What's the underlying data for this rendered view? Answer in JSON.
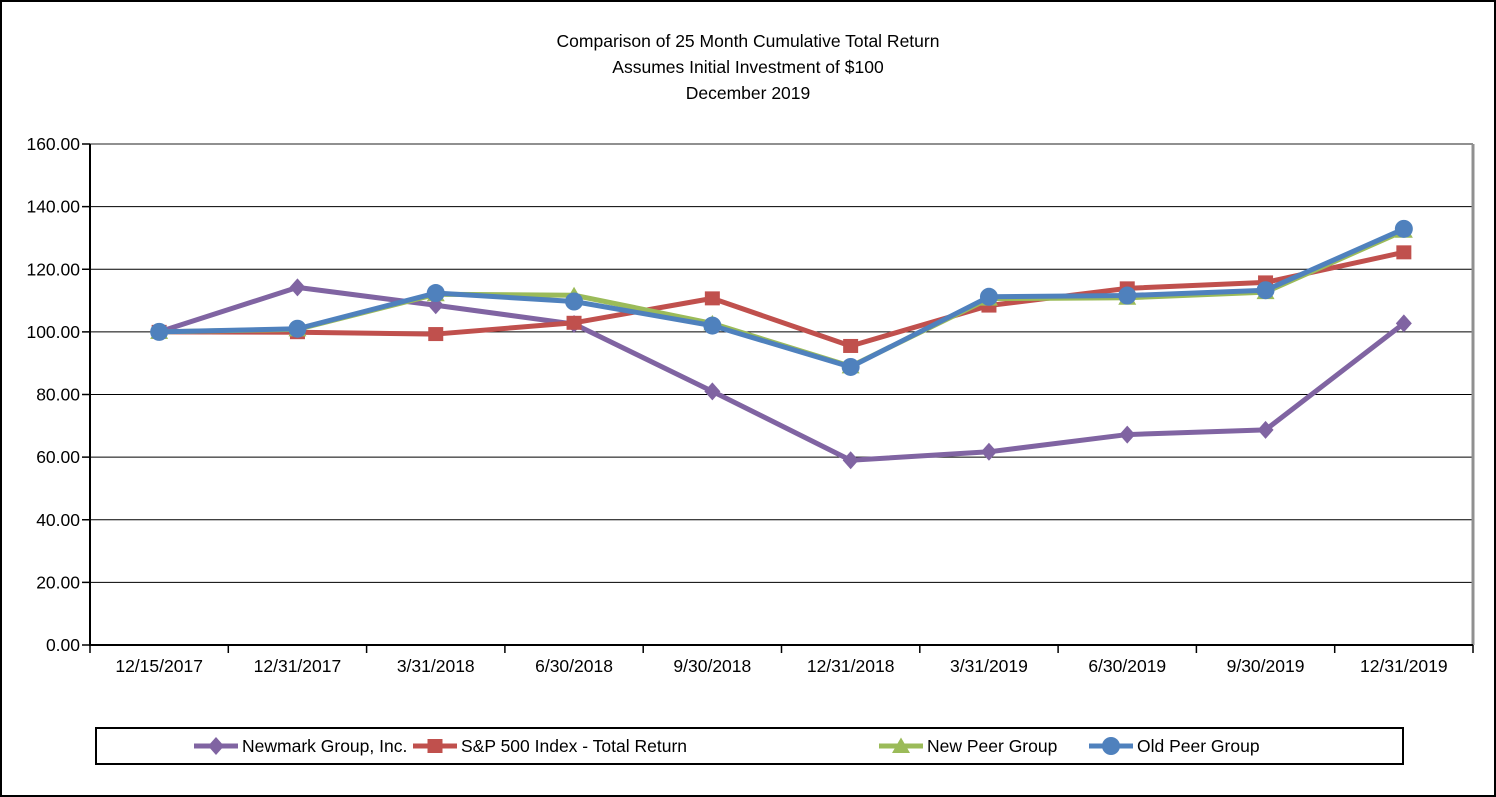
{
  "title": {
    "line1": "Comparison of 25 Month Cumulative Total Return",
    "line2": "Assumes Initial Investment of $100",
    "line3": "December 2019"
  },
  "chart_data": {
    "type": "line",
    "title": "Comparison of 25 Month Cumulative Total Return — Assumes Initial Investment of $100 — December 2019",
    "categories": [
      "12/15/2017",
      "12/31/2017",
      "3/31/2018",
      "6/30/2018",
      "9/30/2018",
      "12/31/2018",
      "3/31/2019",
      "6/30/2019",
      "9/30/2019",
      "12/31/2019"
    ],
    "series": [
      {
        "name": "Newmark Group, Inc.",
        "marker": "diamond",
        "color": "#8064A2",
        "values": [
          100.0,
          114.2,
          108.5,
          102.5,
          81.0,
          59.0,
          61.7,
          67.2,
          68.7,
          102.7
        ]
      },
      {
        "name": "S&P 500 Index - Total Return",
        "marker": "square",
        "color": "#C0504D",
        "values": [
          100.0,
          99.9,
          99.3,
          102.9,
          110.7,
          95.5,
          108.4,
          113.9,
          115.8,
          125.4
        ]
      },
      {
        "name": "New Peer Group",
        "marker": "triangle",
        "color": "#9BBB59",
        "values": [
          100.0,
          100.8,
          112.0,
          111.7,
          102.7,
          89.0,
          110.6,
          110.9,
          112.7,
          132.3
        ]
      },
      {
        "name": "Old Peer Group",
        "marker": "circle",
        "color": "#4F81BD",
        "values": [
          100.0,
          101.0,
          112.4,
          109.7,
          102.0,
          88.8,
          111.2,
          111.6,
          113.3,
          132.9
        ]
      }
    ],
    "xlabel": "",
    "ylabel": "",
    "ylim": [
      0,
      160
    ],
    "ytick_step": 20,
    "ytick_decimals": 2,
    "grid": "horizontal",
    "legend_position": "bottom"
  }
}
